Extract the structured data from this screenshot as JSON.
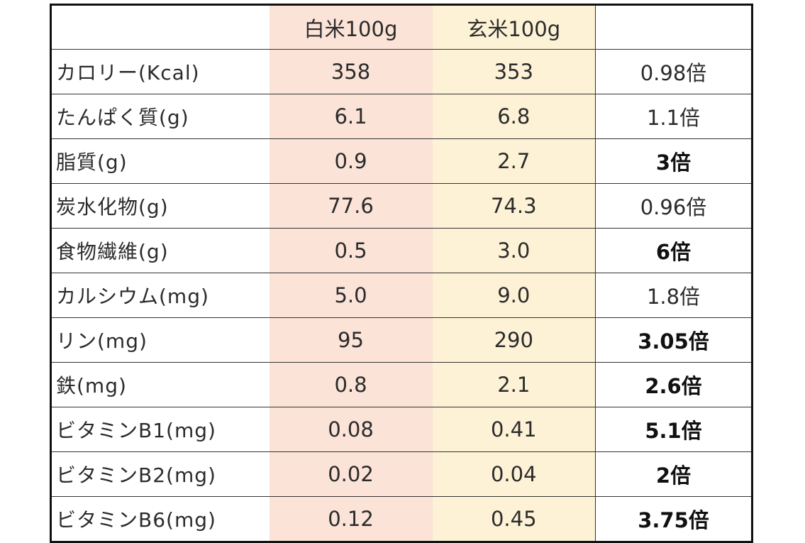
{
  "header": {
    "col_label": "",
    "white_rice": "白米100g",
    "brown_rice": "玄米100g",
    "ratio": ""
  },
  "colors": {
    "white_rice_bg": "#fbe3d8",
    "brown_rice_bg": "#fdf2d6"
  },
  "rows": [
    {
      "label": "カロリー(Kcal)",
      "white": "358",
      "brown": "353",
      "ratio": "0.98倍",
      "bold": false
    },
    {
      "label": "たんぱく質(g)",
      "white": "6.1",
      "brown": "6.8",
      "ratio": "1.1倍",
      "bold": false
    },
    {
      "label": "脂質(g)",
      "white": "0.9",
      "brown": "2.7",
      "ratio": "3倍",
      "bold": true
    },
    {
      "label": "炭水化物(g)",
      "white": "77.6",
      "brown": "74.3",
      "ratio": "0.96倍",
      "bold": false
    },
    {
      "label": "食物繊維(g)",
      "white": "0.5",
      "brown": "3.0",
      "ratio": "6倍",
      "bold": true
    },
    {
      "label": "カルシウム(mg)",
      "white": "5.0",
      "brown": "9.0",
      "ratio": "1.8倍",
      "bold": false
    },
    {
      "label": "リン(mg)",
      "white": "95",
      "brown": "290",
      "ratio": "3.05倍",
      "bold": true
    },
    {
      "label": "鉄(mg)",
      "white": "0.8",
      "brown": "2.1",
      "ratio": "2.6倍",
      "bold": true
    },
    {
      "label": "ビタミンB1(mg)",
      "white": "0.08",
      "brown": "0.41",
      "ratio": "5.1倍",
      "bold": true
    },
    {
      "label": "ビタミンB2(mg)",
      "white": "0.02",
      "brown": "0.04",
      "ratio": "2倍",
      "bold": true
    },
    {
      "label": "ビタミンB6(mg)",
      "white": "0.12",
      "brown": "0.45",
      "ratio": "3.75倍",
      "bold": true
    }
  ]
}
